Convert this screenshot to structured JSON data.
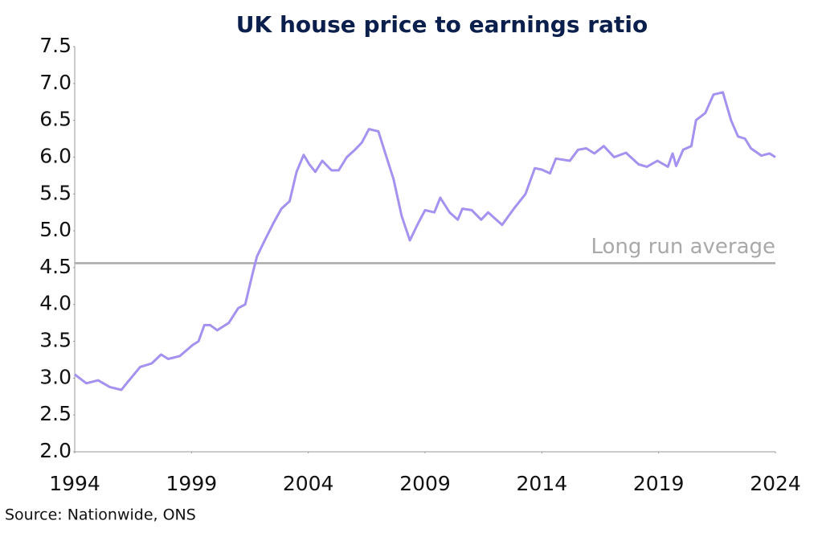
{
  "chart_data": {
    "type": "line",
    "title": "UK house price to earnings ratio",
    "source": "Source: Nationwide, ONS",
    "x": [
      1994.0,
      1994.5,
      1995.0,
      1995.5,
      1996.0,
      1996.2,
      1996.8,
      1997.3,
      1997.7,
      1998.0,
      1998.5,
      1999.05,
      1999.3,
      1999.55,
      1999.8,
      2000.1,
      2000.6,
      2001.0,
      2001.3,
      2001.6,
      2001.8,
      2002.15,
      2002.5,
      2002.85,
      2003.2,
      2003.5,
      2003.8,
      2004.05,
      2004.3,
      2004.6,
      2005.0,
      2005.3,
      2005.65,
      2006.0,
      2006.3,
      2006.6,
      2007.0,
      2007.3,
      2007.65,
      2008.0,
      2008.35,
      2008.7,
      2009.0,
      2009.4,
      2009.65,
      2010.05,
      2010.4,
      2010.6,
      2011.0,
      2011.4,
      2011.7,
      2012.3,
      2012.8,
      2013.3,
      2013.7,
      2014.0,
      2014.35,
      2014.6,
      2015.2,
      2015.55,
      2015.9,
      2016.25,
      2016.65,
      2017.1,
      2017.6,
      2018.15,
      2018.5,
      2018.95,
      2019.4,
      2019.6,
      2019.75,
      2020.05,
      2020.4,
      2020.6,
      2021.0,
      2021.35,
      2021.75,
      2022.1,
      2022.4,
      2022.7,
      2022.95,
      2023.4,
      2023.75,
      2024.0
    ],
    "series": [
      {
        "name": "House price to earnings ratio",
        "color": "#a591ef",
        "values": [
          3.05,
          2.93,
          2.97,
          2.88,
          2.84,
          2.92,
          3.15,
          3.2,
          3.32,
          3.26,
          3.3,
          3.45,
          3.5,
          3.72,
          3.72,
          3.65,
          3.75,
          3.95,
          4.0,
          4.4,
          4.65,
          4.88,
          5.1,
          5.3,
          5.4,
          5.8,
          6.03,
          5.9,
          5.8,
          5.95,
          5.82,
          5.82,
          6.0,
          6.1,
          6.2,
          6.38,
          6.35,
          6.05,
          5.7,
          5.2,
          4.87,
          5.1,
          5.28,
          5.25,
          5.45,
          5.25,
          5.15,
          5.3,
          5.28,
          5.15,
          5.25,
          5.08,
          5.3,
          5.5,
          5.85,
          5.83,
          5.78,
          5.98,
          5.95,
          6.1,
          6.12,
          6.05,
          6.15,
          6.0,
          6.06,
          5.9,
          5.87,
          5.95,
          5.87,
          6.05,
          5.88,
          6.1,
          6.15,
          6.5,
          6.6,
          6.85,
          6.88,
          6.5,
          6.28,
          6.25,
          6.12,
          6.02,
          6.05,
          6.0
        ]
      }
    ],
    "reference_line": {
      "value": 4.56,
      "label": "Long run average",
      "color": "#a9a9a9"
    },
    "xlim": [
      1994,
      2024
    ],
    "xticks": [
      1994,
      1999,
      2004,
      2009,
      2014,
      2019,
      2024
    ],
    "ylim": [
      2,
      7.5
    ],
    "yticks": [
      {
        "value": 2,
        "label": "2.0"
      },
      2.5,
      {
        "value": 3,
        "label": "3.0"
      },
      3.5,
      {
        "value": 4,
        "label": "4.0"
      },
      4.5,
      {
        "value": 5,
        "label": "5.0"
      },
      5.5,
      {
        "value": 6,
        "label": "6.0"
      },
      6.5,
      {
        "value": 7,
        "label": "7.0"
      },
      7.5
    ],
    "grid": false
  }
}
